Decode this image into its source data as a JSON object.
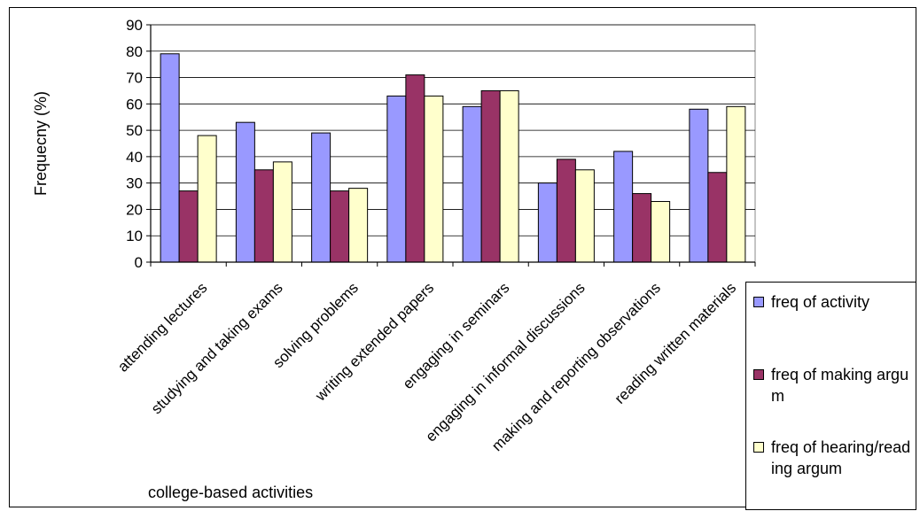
{
  "chart_data": {
    "type": "bar",
    "title": "",
    "xlabel": "college-based activities",
    "ylabel": "Frequecny (%)",
    "ylim": [
      0,
      90
    ],
    "y_ticks": [
      0,
      10,
      20,
      30,
      40,
      50,
      60,
      70,
      80,
      90
    ],
    "grid": true,
    "legend_position": "right-bottom",
    "categories": [
      "attending lectures",
      "studying and taking exams",
      "solving problems",
      "writing extended papers",
      "engaging in seminars",
      "engaging in informal discussions",
      "making and reporting observations",
      "reading written materials"
    ],
    "series": [
      {
        "name": "freq of activity",
        "color": "#9999ff",
        "values": [
          79,
          53,
          49,
          63,
          59,
          30,
          42,
          58
        ]
      },
      {
        "name": "freq of making argum",
        "color": "#993366",
        "values": [
          27,
          35,
          27,
          71,
          65,
          39,
          26,
          34
        ]
      },
      {
        "name": "freq of hearing/reading argum",
        "color": "#ffffcc",
        "values": [
          48,
          38,
          28,
          63,
          65,
          35,
          23,
          59
        ]
      }
    ]
  },
  "legend": {
    "items": [
      {
        "label": "freq of activity",
        "color": "#9999ff"
      },
      {
        "label": "freq of making argum",
        "color": "#993366"
      },
      {
        "label": "freq of hearing/reading argum",
        "color": "#ffffcc"
      }
    ]
  }
}
